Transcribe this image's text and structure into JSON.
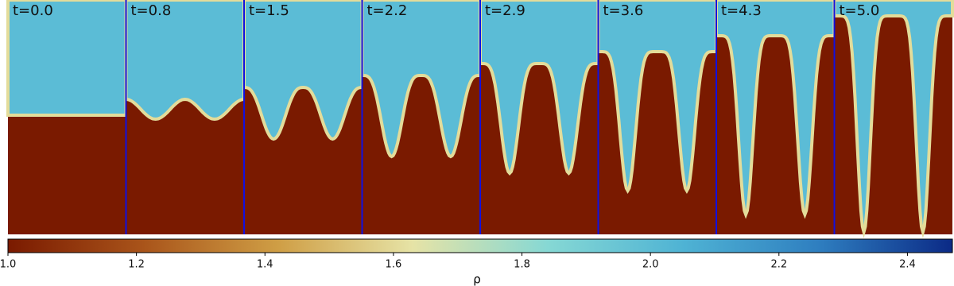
{
  "chart_data": {
    "type": "heatmap",
    "panels": [
      "t=0.0",
      "t=0.8",
      "t=1.5",
      "t=2.2",
      "t=2.9",
      "t=3.6",
      "t=4.3",
      "t=5.0"
    ],
    "colorbar": {
      "label": "ρ",
      "xlim": [
        1.0,
        2.47
      ],
      "xticks": [
        {
          "value": 1.0,
          "label": "1.0"
        },
        1.2,
        1.4,
        1.6,
        1.8,
        {
          "value": 2.0,
          "label": "2.0"
        },
        2.2,
        2.4
      ],
      "colors": [
        "#7a1a00",
        "#a9541a",
        "#cf9e45",
        "#e6e3a6",
        "#86d8d4",
        "#4fb3d4",
        "#2f7fc0",
        "#0b2a86"
      ]
    },
    "divider_color": "#1010e0"
  }
}
